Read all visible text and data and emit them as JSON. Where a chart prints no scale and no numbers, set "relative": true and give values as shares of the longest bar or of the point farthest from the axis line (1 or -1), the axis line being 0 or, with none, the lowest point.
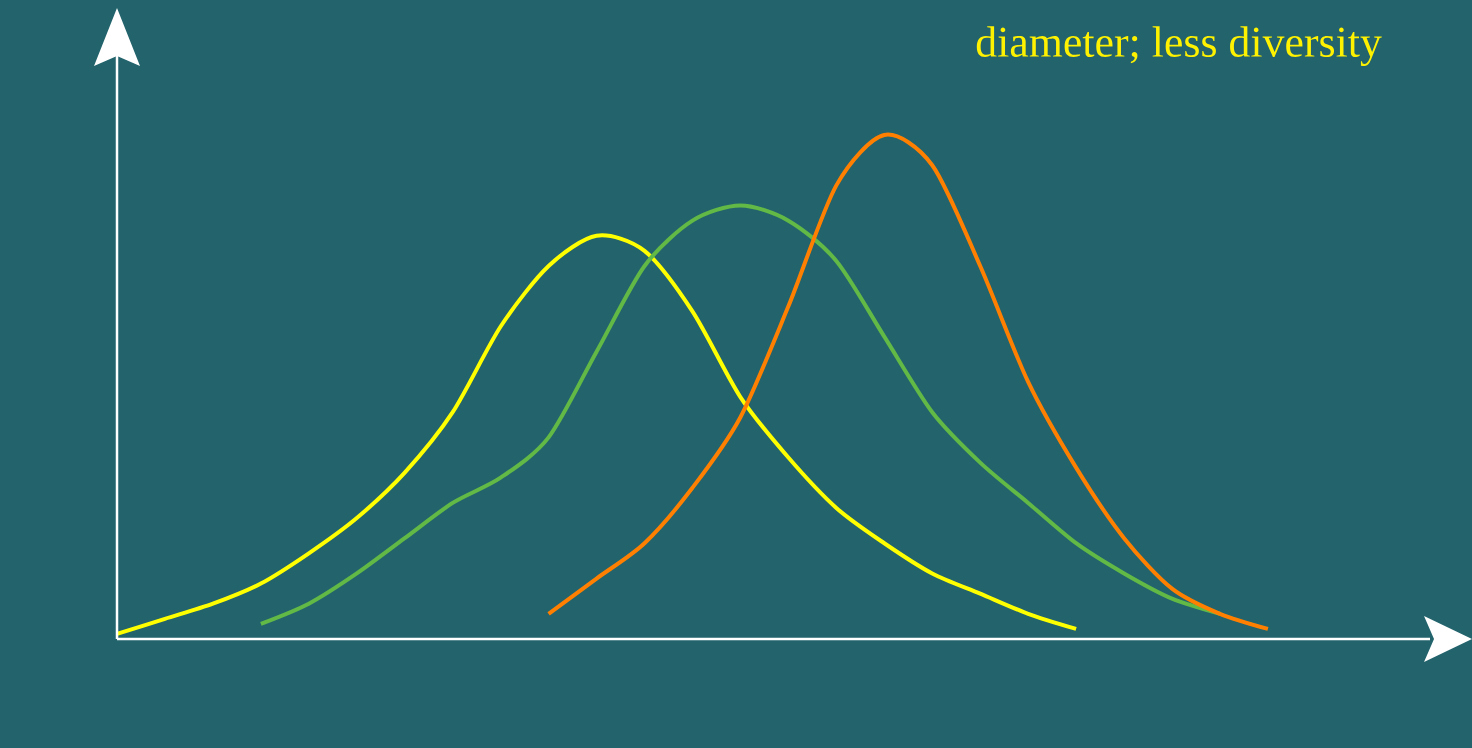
{
  "chart_data": {
    "type": "line",
    "relative": true,
    "annotations": [
      "diameter; less diversity"
    ],
    "categories": [
      null,
      null,
      null,
      null,
      null,
      null,
      null,
      null,
      null,
      null,
      null,
      null,
      null,
      null,
      null,
      null,
      null,
      null,
      null,
      null,
      null,
      null,
      null,
      null,
      null
    ],
    "line_style": "solid",
    "marker": "none",
    "series": [
      {
        "color": "#ffff00",
        "values": [
          0.01,
          0.04,
          0.07,
          0.11,
          0.17,
          0.24,
          0.33,
          0.45,
          0.62,
          0.74,
          0.8,
          0.77,
          0.65,
          0.48,
          0.36,
          0.26,
          0.19,
          0.13,
          0.09,
          0.05,
          0.02,
          null,
          null,
          null,
          null
        ]
      },
      {
        "color": "#62b946",
        "values": [
          null,
          null,
          null,
          0.03,
          0.07,
          0.13,
          0.2,
          0.27,
          0.32,
          0.4,
          0.57,
          0.74,
          0.83,
          0.86,
          0.83,
          0.75,
          0.6,
          0.45,
          0.35,
          0.27,
          0.19,
          0.13,
          0.08,
          0.05,
          null
        ]
      },
      {
        "color": "#ff8000",
        "values": [
          null,
          null,
          null,
          null,
          null,
          null,
          null,
          null,
          null,
          0.05,
          0.12,
          0.19,
          0.3,
          0.44,
          0.66,
          0.9,
          1.0,
          0.94,
          0.74,
          0.51,
          0.34,
          0.2,
          0.1,
          0.05,
          0.02
        ]
      }
    ]
  }
}
